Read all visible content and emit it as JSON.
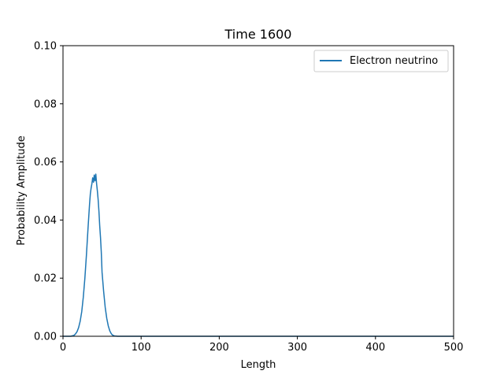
{
  "chart_data": {
    "type": "line",
    "title": "Time 1600",
    "xlabel": "Length",
    "ylabel": "Probability Amplitude",
    "xlim": [
      0,
      500
    ],
    "ylim": [
      0,
      0.1
    ],
    "x_ticks": [
      0,
      100,
      200,
      300,
      400,
      500
    ],
    "x_tick_labels": [
      "0",
      "100",
      "200",
      "300",
      "400",
      "500"
    ],
    "y_ticks": [
      0,
      0.02,
      0.04,
      0.06,
      0.08,
      0.1
    ],
    "y_tick_labels": [
      "0.00",
      "0.02",
      "0.04",
      "0.06",
      "0.08",
      "0.10"
    ],
    "grid": false,
    "legend_position": "top-right",
    "series": [
      {
        "name": "Electron neutrino",
        "color": "#1f77b4",
        "x": [
          0,
          10,
          14,
          16,
          18,
          20,
          22,
          24,
          26,
          28,
          30,
          32,
          34,
          35,
          36,
          37,
          38,
          39,
          40,
          41,
          42,
          43,
          44,
          45,
          46,
          47,
          48,
          49,
          50,
          52,
          54,
          56,
          58,
          60,
          62,
          64,
          66,
          70,
          80,
          100,
          200,
          300,
          400,
          500
        ],
        "y": [
          0,
          0,
          0.0003,
          0.0008,
          0.0016,
          0.003,
          0.0052,
          0.0085,
          0.0135,
          0.02,
          0.028,
          0.037,
          0.0455,
          0.049,
          0.051,
          0.0525,
          0.0545,
          0.053,
          0.0555,
          0.0535,
          0.0558,
          0.0525,
          0.05,
          0.047,
          0.043,
          0.038,
          0.034,
          0.029,
          0.022,
          0.0155,
          0.01,
          0.0062,
          0.0035,
          0.0018,
          0.0008,
          0.0003,
          0.0001,
          0,
          0,
          0,
          0,
          0,
          0,
          0
        ]
      }
    ]
  }
}
